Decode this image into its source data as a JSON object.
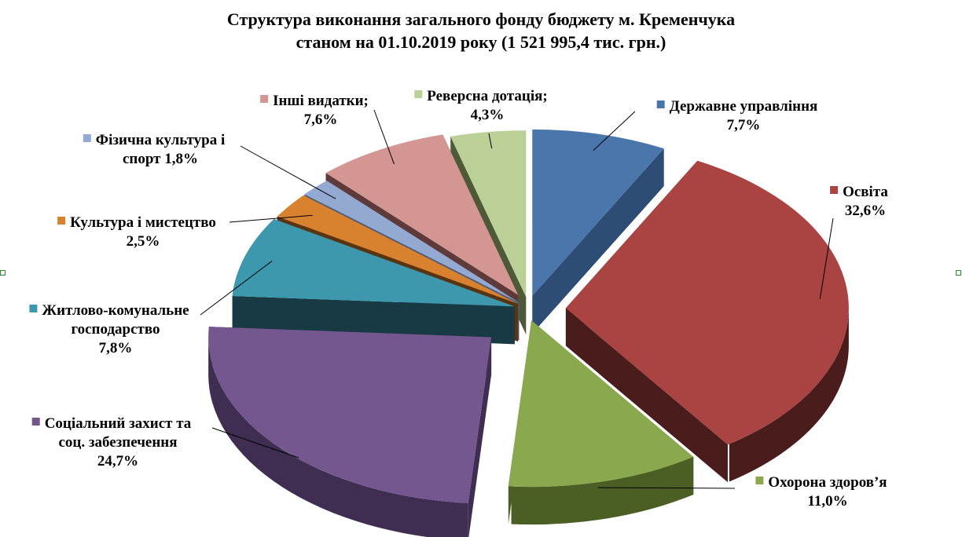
{
  "chart_data": {
    "type": "pie",
    "title": "Структура виконання загального фонду бюджету м. Кременчука",
    "subtitle": "станом на 01.10.2019 року (1 521 995,4 тис. грн.)",
    "unit": "%",
    "slices": [
      {
        "label_lines": [
          "Державне управління",
          "7,7%"
        ],
        "value": 7.7,
        "color": "#4A76AC",
        "side": "#2E4D74"
      },
      {
        "label_lines": [
          "Освіта",
          "32,6%"
        ],
        "value": 32.6,
        "color": "#A94442",
        "side": "#4A1C1B"
      },
      {
        "label_lines": [
          "Охорона здоров’я",
          "11,0%"
        ],
        "value": 11.0,
        "color": "#8AA84D",
        "side": "#4B5F25"
      },
      {
        "label_lines": [
          "Соціальний захист та",
          "соц. забезпечення",
          "24,7%"
        ],
        "value": 24.7,
        "color": "#73578E",
        "side": "#3F2E52"
      },
      {
        "label_lines": [
          "Житлово-комунальне",
          "господарство",
          "7,8%"
        ],
        "value": 7.8,
        "color": "#3D97AD",
        "side": "#173A45"
      },
      {
        "label_lines": [
          "Культура і мистецтво",
          "2,5%"
        ],
        "value": 2.5,
        "color": "#D8822F",
        "side": "#5A3310"
      },
      {
        "label_lines": [
          "Фізична культура і",
          "спорт 1,8%"
        ],
        "value": 1.8,
        "color": "#93A9D2",
        "side": "#4F5E7A"
      },
      {
        "label_lines": [
          "Інші видатки;",
          "7,6%"
        ],
        "value": 7.6,
        "color": "#D39693",
        "side": "#5E3B3A"
      },
      {
        "label_lines": [
          "Реверсна дотація;",
          "4,3%"
        ],
        "value": 4.3,
        "color": "#BBD097",
        "side": "#4E5A37"
      }
    ]
  }
}
